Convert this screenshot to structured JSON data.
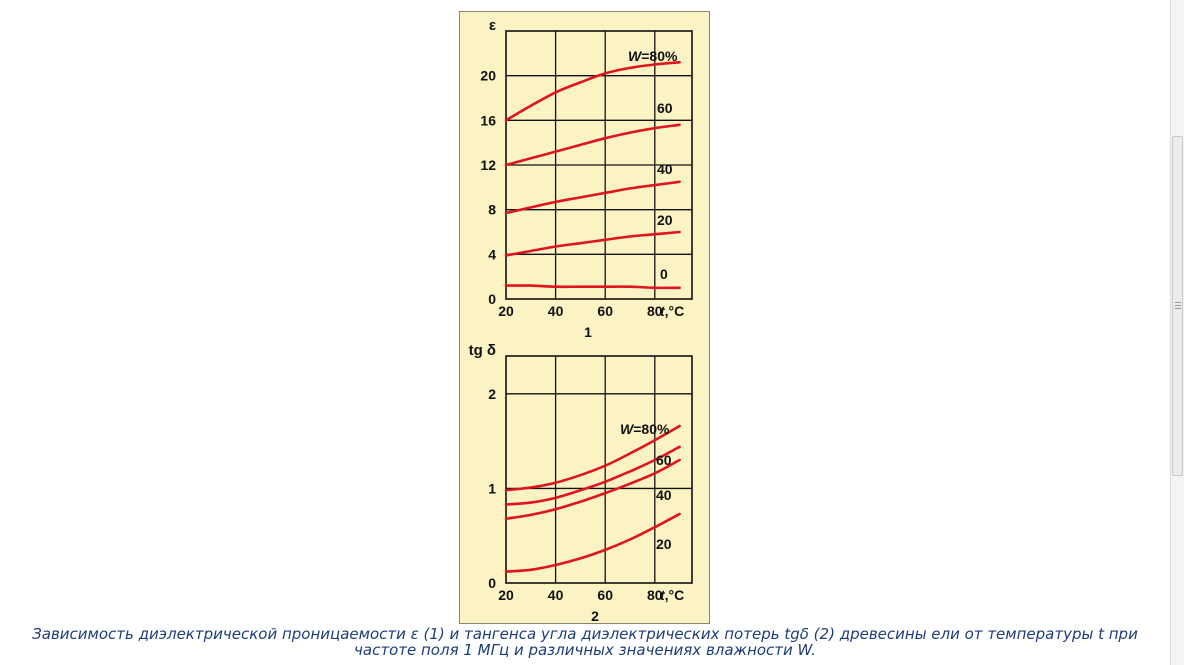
{
  "caption": "Зависимость диэлектрической проницаемости ε (1) и тангенса угла диэлектрических потерь tgδ (2) древесины ели от температуры t при частоте поля 1 МГц и различных значениях влажности W.",
  "colors": {
    "curve": "#e0141e",
    "panel": "#fbf3c3",
    "axis": "#111111",
    "caption": "#1e3c78"
  },
  "chart_data": [
    {
      "type": "line",
      "panel_label": "1",
      "ylabel": "ε",
      "xlabel_var": "t",
      "xlabel_unit": ",°C",
      "xlim": [
        20,
        95
      ],
      "ylim": [
        0,
        24
      ],
      "x_ticks": [
        "20",
        "40",
        "60",
        "80"
      ],
      "y_ticks": [
        "0",
        "4",
        "8",
        "12",
        "16",
        "20"
      ],
      "x_tick_values": [
        20,
        40,
        60,
        80
      ],
      "y_tick_values": [
        0,
        4,
        8,
        12,
        16,
        20
      ],
      "grid": true,
      "legend_prefix": "W",
      "series": [
        {
          "name": "80%",
          "x": [
            20,
            30,
            40,
            50,
            60,
            70,
            80,
            90
          ],
          "y": [
            16,
            17.3,
            18.5,
            19.4,
            20.2,
            20.7,
            21.0,
            21.2
          ]
        },
        {
          "name": "60",
          "x": [
            20,
            30,
            40,
            50,
            60,
            70,
            80,
            90
          ],
          "y": [
            12,
            12.6,
            13.2,
            13.8,
            14.4,
            14.9,
            15.3,
            15.6
          ]
        },
        {
          "name": "40",
          "x": [
            20,
            30,
            40,
            50,
            60,
            70,
            80,
            90
          ],
          "y": [
            7.7,
            8.2,
            8.7,
            9.1,
            9.5,
            9.9,
            10.2,
            10.5
          ]
        },
        {
          "name": "20",
          "x": [
            20,
            30,
            40,
            50,
            60,
            70,
            80,
            90
          ],
          "y": [
            3.9,
            4.3,
            4.7,
            5.0,
            5.3,
            5.6,
            5.8,
            6.0
          ]
        },
        {
          "name": "0",
          "x": [
            20,
            30,
            40,
            50,
            60,
            70,
            80,
            90
          ],
          "y": [
            1.2,
            1.2,
            1.1,
            1.1,
            1.1,
            1.1,
            1.0,
            1.0
          ]
        }
      ]
    },
    {
      "type": "line",
      "panel_label": "2",
      "ylabel": "tg δ",
      "xlabel_var": "t",
      "xlabel_unit": ",°C",
      "xlim": [
        20,
        95
      ],
      "ylim": [
        0,
        2.4
      ],
      "x_ticks": [
        "20",
        "40",
        "60",
        "80"
      ],
      "y_ticks": [
        "0",
        "1",
        "2"
      ],
      "x_tick_values": [
        20,
        40,
        60,
        80
      ],
      "y_tick_values": [
        0,
        1,
        2
      ],
      "grid": true,
      "legend_prefix": "W",
      "series": [
        {
          "name": "80%",
          "x": [
            20,
            30,
            40,
            50,
            60,
            70,
            80,
            90
          ],
          "y": [
            0.98,
            1.01,
            1.06,
            1.14,
            1.24,
            1.37,
            1.51,
            1.66
          ]
        },
        {
          "name": "60",
          "x": [
            20,
            30,
            40,
            50,
            60,
            70,
            80,
            90
          ],
          "y": [
            0.83,
            0.85,
            0.9,
            0.98,
            1.07,
            1.18,
            1.3,
            1.44
          ]
        },
        {
          "name": "40",
          "x": [
            20,
            30,
            40,
            50,
            60,
            70,
            80,
            90
          ],
          "y": [
            0.68,
            0.72,
            0.78,
            0.86,
            0.95,
            1.05,
            1.16,
            1.3
          ]
        },
        {
          "name": "20",
          "x": [
            20,
            30,
            40,
            50,
            60,
            70,
            80,
            90
          ],
          "y": [
            0.12,
            0.14,
            0.19,
            0.26,
            0.35,
            0.46,
            0.59,
            0.73
          ]
        }
      ]
    }
  ]
}
